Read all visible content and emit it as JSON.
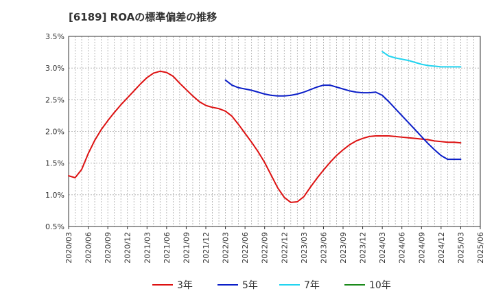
{
  "chart_data": {
    "type": "line",
    "title": "[6189]  ROAの標準偏差の推移",
    "xlabel": "",
    "ylabel": "",
    "ylim": [
      0.5,
      3.5
    ],
    "yticks": [
      "0.5%",
      "1.0%",
      "1.5%",
      "2.0%",
      "2.5%",
      "3.0%",
      "3.5%"
    ],
    "x_tick_labels": [
      "2020/03",
      "2020/06",
      "2020/09",
      "2020/12",
      "2021/03",
      "2021/06",
      "2021/09",
      "2021/12",
      "2022/03",
      "2022/06",
      "2022/09",
      "2022/12",
      "2023/03",
      "2023/06",
      "2023/09",
      "2023/12",
      "2024/03",
      "2024/06",
      "2024/09",
      "2024/12",
      "2025/03",
      "2025/06"
    ],
    "x_range": [
      "2020/03",
      "2025/06"
    ],
    "grid": true,
    "legend_position": "bottom",
    "series": [
      {
        "name": "3年",
        "color": "#dd1111",
        "x": [
          "2020/03",
          "2020/04",
          "2020/05",
          "2020/06",
          "2020/07",
          "2020/08",
          "2020/09",
          "2020/10",
          "2020/11",
          "2020/12",
          "2021/01",
          "2021/02",
          "2021/03",
          "2021/04",
          "2021/05",
          "2021/06",
          "2021/07",
          "2021/08",
          "2021/09",
          "2021/10",
          "2021/11",
          "2021/12",
          "2022/01",
          "2022/02",
          "2022/03",
          "2022/04",
          "2022/05",
          "2022/06",
          "2022/07",
          "2022/08",
          "2022/09",
          "2022/10",
          "2022/11",
          "2022/12",
          "2023/01",
          "2023/02",
          "2023/03",
          "2023/04",
          "2023/05",
          "2023/06",
          "2023/07",
          "2023/08",
          "2023/09",
          "2023/10",
          "2023/11",
          "2023/12",
          "2024/01",
          "2024/02",
          "2024/03",
          "2024/04",
          "2024/05",
          "2024/06",
          "2024/07",
          "2024/08",
          "2024/09",
          "2024/10",
          "2024/11",
          "2024/12",
          "2025/01",
          "2025/02",
          "2025/03"
        ],
        "values": [
          1.3,
          1.27,
          1.4,
          1.65,
          1.86,
          2.03,
          2.17,
          2.3,
          2.42,
          2.53,
          2.64,
          2.75,
          2.85,
          2.92,
          2.95,
          2.93,
          2.87,
          2.76,
          2.66,
          2.56,
          2.47,
          2.41,
          2.38,
          2.36,
          2.32,
          2.24,
          2.11,
          1.97,
          1.83,
          1.68,
          1.51,
          1.31,
          1.11,
          0.96,
          0.88,
          0.89,
          0.97,
          1.12,
          1.26,
          1.39,
          1.51,
          1.62,
          1.71,
          1.79,
          1.85,
          1.89,
          1.92,
          1.93,
          1.93,
          1.93,
          1.92,
          1.91,
          1.9,
          1.89,
          1.88,
          1.87,
          1.85,
          1.84,
          1.83,
          1.83,
          1.82
        ]
      },
      {
        "name": "5年",
        "color": "#0b1ec8",
        "x": [
          "2022/03",
          "2022/04",
          "2022/05",
          "2022/06",
          "2022/07",
          "2022/08",
          "2022/09",
          "2022/10",
          "2022/11",
          "2022/12",
          "2023/01",
          "2023/02",
          "2023/03",
          "2023/04",
          "2023/05",
          "2023/06",
          "2023/07",
          "2023/08",
          "2023/09",
          "2023/10",
          "2023/11",
          "2023/12",
          "2024/01",
          "2024/02",
          "2024/03",
          "2024/04",
          "2024/05",
          "2024/06",
          "2024/07",
          "2024/08",
          "2024/09",
          "2024/10",
          "2024/11",
          "2024/12",
          "2025/01",
          "2025/02",
          "2025/03"
        ],
        "values": [
          2.81,
          2.73,
          2.69,
          2.67,
          2.65,
          2.62,
          2.59,
          2.57,
          2.56,
          2.56,
          2.57,
          2.59,
          2.62,
          2.66,
          2.7,
          2.73,
          2.73,
          2.7,
          2.67,
          2.64,
          2.62,
          2.61,
          2.61,
          2.62,
          2.57,
          2.47,
          2.36,
          2.25,
          2.14,
          2.03,
          1.92,
          1.81,
          1.71,
          1.62,
          1.56,
          1.56,
          1.56
        ]
      },
      {
        "name": "7年",
        "color": "#22d4f0",
        "x": [
          "2024/03",
          "2024/04",
          "2024/05",
          "2024/06",
          "2024/07",
          "2024/08",
          "2024/09",
          "2024/10",
          "2024/11",
          "2024/12",
          "2025/01",
          "2025/02",
          "2025/03"
        ],
        "values": [
          3.26,
          3.19,
          3.16,
          3.14,
          3.12,
          3.09,
          3.06,
          3.04,
          3.03,
          3.02,
          3.02,
          3.02,
          3.02
        ]
      },
      {
        "name": "10年",
        "color": "#1a8a1a",
        "x": [],
        "values": []
      }
    ]
  }
}
